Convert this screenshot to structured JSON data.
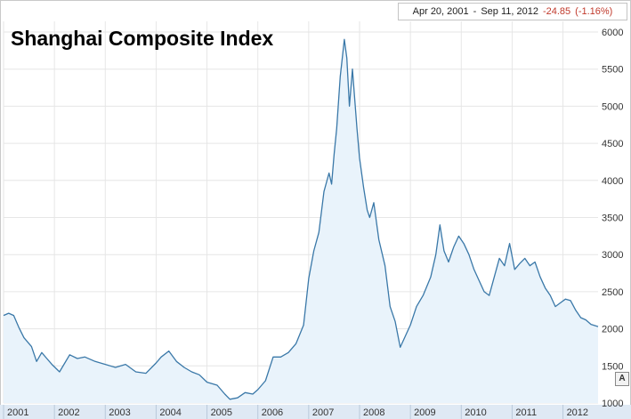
{
  "header": {
    "range_start": "Apr 20, 2001",
    "range_separator": "-",
    "range_end": "Sep 11, 2012",
    "change": "-24.85",
    "change_pct": "(-1.16%)"
  },
  "autoscale_label": "A",
  "chart_data": {
    "type": "area",
    "title": "Shanghai Composite Index",
    "xlabel": "",
    "ylabel": "",
    "ylim": [
      1000,
      6000
    ],
    "xlim": [
      2001.0,
      2012.69
    ],
    "y_ticks": [
      1000,
      1500,
      2000,
      2500,
      3000,
      3500,
      4000,
      4500,
      5000,
      5500,
      6000
    ],
    "y_tick_labels": [
      "1000",
      "1500",
      "2000",
      "2500",
      "3000",
      "3500",
      "4000",
      "4500",
      "5000",
      "5500",
      "6000"
    ],
    "x_ticks": [
      2001,
      2002,
      2003,
      2004,
      2005,
      2006,
      2007,
      2008,
      2009,
      2010,
      2011,
      2012
    ],
    "x_tick_labels": [
      "2001",
      "2002",
      "2003",
      "2004",
      "2005",
      "2006",
      "2007",
      "2008",
      "2009",
      "2010",
      "2011",
      "2012"
    ],
    "grid": true,
    "line_color": "#3a78a8",
    "fill_color": "#e9f3fb",
    "series": [
      {
        "x": [
          2001.0,
          2001.1,
          2001.2,
          2001.3,
          2001.4,
          2001.55,
          2001.65,
          2001.75,
          2001.85,
          2001.95,
          2002.1,
          2002.3,
          2002.45,
          2002.6,
          2002.8,
          2003.0,
          2003.2,
          2003.4,
          2003.6,
          2003.8,
          2004.0,
          2004.1,
          2004.25,
          2004.4,
          2004.55,
          2004.7,
          2004.85,
          2005.0,
          2005.2,
          2005.35,
          2005.45,
          2005.6,
          2005.75,
          2005.9,
          2006.0,
          2006.15,
          2006.3,
          2006.45,
          2006.6,
          2006.75,
          2006.9,
          2007.0,
          2007.1,
          2007.2,
          2007.3,
          2007.4,
          2007.45,
          2007.5,
          2007.55,
          2007.62,
          2007.7,
          2007.75,
          2007.8,
          2007.86,
          2007.95,
          2008.0,
          2008.08,
          2008.15,
          2008.2,
          2008.28,
          2008.38,
          2008.5,
          2008.6,
          2008.7,
          2008.8,
          2008.9,
          2009.0,
          2009.12,
          2009.25,
          2009.4,
          2009.5,
          2009.58,
          2009.66,
          2009.75,
          2009.85,
          2009.95,
          2010.05,
          2010.15,
          2010.25,
          2010.35,
          2010.45,
          2010.55,
          2010.65,
          2010.75,
          2010.85,
          2010.95,
          2011.05,
          2011.15,
          2011.25,
          2011.35,
          2011.45,
          2011.55,
          2011.65,
          2011.75,
          2011.85,
          2011.95,
          2012.05,
          2012.15,
          2012.25,
          2012.35,
          2012.45,
          2012.55,
          2012.69
        ],
        "y": [
          2180,
          2210,
          2180,
          2020,
          1880,
          1760,
          1560,
          1680,
          1600,
          1520,
          1420,
          1650,
          1600,
          1620,
          1560,
          1520,
          1480,
          1520,
          1420,
          1400,
          1540,
          1620,
          1700,
          1560,
          1480,
          1420,
          1380,
          1280,
          1240,
          1120,
          1050,
          1070,
          1140,
          1120,
          1180,
          1300,
          1620,
          1620,
          1680,
          1800,
          2050,
          2680,
          3050,
          3300,
          3850,
          4100,
          3950,
          4350,
          4700,
          5400,
          5900,
          5650,
          5000,
          5500,
          4700,
          4300,
          3900,
          3600,
          3500,
          3700,
          3200,
          2850,
          2300,
          2100,
          1750,
          1900,
          2050,
          2300,
          2450,
          2700,
          3000,
          3400,
          3050,
          2900,
          3100,
          3250,
          3150,
          3000,
          2800,
          2650,
          2500,
          2450,
          2700,
          2950,
          2850,
          3150,
          2800,
          2880,
          2950,
          2850,
          2900,
          2700,
          2550,
          2450,
          2300,
          2350,
          2400,
          2380,
          2250,
          2150,
          2120,
          2060,
          2030
        ]
      }
    ]
  }
}
